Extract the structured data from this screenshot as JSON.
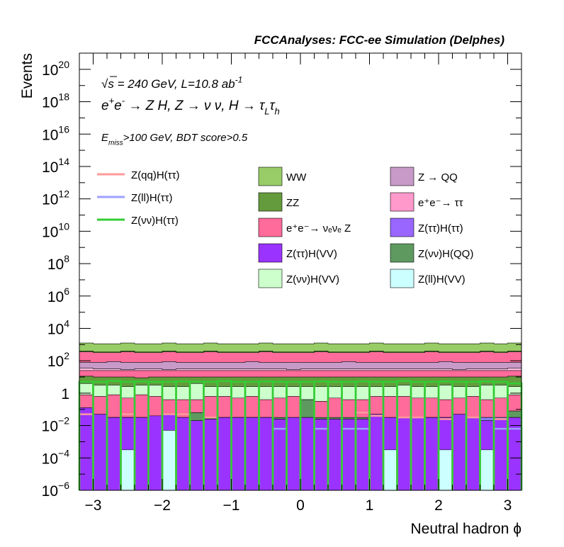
{
  "chart_data": {
    "type": "bar",
    "title": "FCCAnalyses: FCC-ee Simulation (Delphes)",
    "xlabel": "Neutral hadron ϕ",
    "ylabel": "Events",
    "xlim": [
      -3.2,
      3.2
    ],
    "ylim": [
      1e-06,
      1e+21
    ],
    "ylog": true,
    "x_ticks": [
      -3,
      -2,
      -1,
      0,
      1,
      2,
      3
    ],
    "x_tick_labels": [
      "−3",
      "−2",
      "−1",
      "0",
      "1",
      "2",
      "3"
    ],
    "y_ticks": [
      {
        "v": 1e-06,
        "base": "10",
        "exp": "−6"
      },
      {
        "v": 0.0001,
        "base": "10",
        "exp": "−4"
      },
      {
        "v": 0.01,
        "base": "10",
        "exp": "−2"
      },
      {
        "v": 1,
        "base": "1",
        "exp": ""
      },
      {
        "v": 100.0,
        "base": "10",
        "exp": "2"
      },
      {
        "v": 10000.0,
        "base": "10",
        "exp": "4"
      },
      {
        "v": 1000000.0,
        "base": "10",
        "exp": "6"
      },
      {
        "v": 100000000.0,
        "base": "10",
        "exp": "8"
      },
      {
        "v": 10000000000.0,
        "base": "10",
        "exp": "10"
      },
      {
        "v": 1000000000000.0,
        "base": "10",
        "exp": "12"
      },
      {
        "v": 100000000000000.0,
        "base": "10",
        "exp": "14"
      },
      {
        "v": 1e+16,
        "base": "10",
        "exp": "16"
      },
      {
        "v": 1e+18,
        "base": "10",
        "exp": "18"
      },
      {
        "v": 1e+20,
        "base": "10",
        "exp": "20"
      }
    ],
    "annotations": [
      {
        "id": "energy",
        "parts": [
          [
            "√",
            ""
          ],
          [
            "s = 240 GeV, L=10.8 ab",
            ""
          ],
          [
            "-1",
            "sup"
          ]
        ]
      },
      {
        "id": "process",
        "parts": [
          [
            "e",
            ""
          ],
          [
            "+",
            "sup"
          ],
          [
            "e",
            ""
          ],
          [
            "-",
            "sup"
          ],
          [
            " → Z H, Z  → ν ν, H  → τ",
            ""
          ],
          [
            "L",
            "sub"
          ],
          [
            "τ",
            ""
          ],
          [
            "h",
            "sub"
          ]
        ]
      },
      {
        "id": "cuts",
        "parts": [
          [
            "E",
            ""
          ],
          [
            "miss",
            "sub"
          ],
          [
            ">100 GeV, BDT score>0.5",
            ""
          ]
        ]
      }
    ],
    "bin_edges": [
      -3.2,
      -3.0,
      -2.8,
      -2.6,
      -2.4,
      -2.2,
      -2.0,
      -1.8,
      -1.6,
      -1.4,
      -1.2,
      -1.0,
      -0.8,
      -0.6,
      -0.4,
      -0.2,
      0.0,
      0.2,
      0.4,
      0.6,
      0.8,
      1.0,
      1.2,
      1.4,
      1.6,
      1.8,
      2.0,
      2.2,
      2.4,
      2.6,
      2.8,
      3.0,
      3.2
    ],
    "stack_totals_log10": [
      [
        -0.9,
        -1.3,
        -1.5,
        -1.5,
        -1.5,
        -1.4,
        -1.3,
        -1.5,
        -1.7,
        -1.6,
        -1.5,
        -1.5,
        -1.5,
        -1.5,
        -1.6,
        -1.5,
        -1.5,
        -1.6,
        -1.6,
        -1.6,
        -1.6,
        -1.3,
        -1.5,
        -1.5,
        -1.5,
        -1.5,
        -1.5,
        -1.3,
        -1.5,
        -1.7,
        -1.6,
        -1.5
      ],
      [
        -1.5,
        -1.5,
        -1.5,
        -1.5,
        -1.5,
        -1.5,
        -1.5,
        -1.8,
        -1.8,
        -1.6,
        -1.5,
        -1.5,
        -1.5,
        -1.5,
        -1.6,
        -1.6,
        -1.5,
        -1.6,
        -1.6,
        -1.8,
        -1.7,
        -1.6,
        -1.6,
        -1.7,
        -1.5,
        -1.5,
        -1.5,
        -1.5,
        -1.5,
        -1.5,
        -1.5,
        -1.5
      ],
      [
        -1.5,
        -1.5,
        -1.5,
        -1.5,
        -1.5,
        -1.5,
        -1.5,
        -1.5,
        -1.2,
        -1.5,
        -1.5,
        -1.5,
        -1.5,
        -1.5,
        -1.5,
        -1.5,
        -0.4,
        -1.5,
        -1.5,
        -1.5,
        -1.5,
        -1.5,
        -1.5,
        -1.5,
        -1.5,
        -1.5,
        -1.5,
        -1.5,
        -1.5,
        -1.5,
        -1.5,
        -1.1
      ],
      [
        -0.1,
        -0.2,
        -0.1,
        -0.3,
        -0.1,
        -0.2,
        -0.4,
        -0.4,
        -0.4,
        -0.2,
        -0.2,
        -0.3,
        -0.2,
        -0.4,
        -0.3,
        -0.2,
        -0.4,
        -0.5,
        -0.3,
        -0.4,
        -0.4,
        -0.2,
        -0.2,
        -0.2,
        -0.3,
        -0.3,
        -0.4,
        -0.3,
        -0.2,
        -0.4,
        -0.3,
        -0.1
      ],
      [
        0.6,
        0.5,
        0.5,
        0.4,
        0.5,
        0.5,
        0.4,
        0.4,
        0.6,
        0.4,
        0.4,
        0.4,
        0.4,
        0.4,
        0.4,
        0.4,
        0.4,
        0.4,
        0.4,
        0.4,
        0.4,
        0.4,
        0.4,
        0.5,
        0.4,
        0.4,
        0.5,
        0.4,
        0.4,
        0.5,
        0.5,
        0.4
      ],
      [
        1.05,
        1.0,
        1.0,
        1.0,
        0.95,
        1.0,
        1.0,
        1.0,
        1.0,
        1.0,
        1.0,
        1.0,
        1.0,
        1.0,
        1.0,
        1.0,
        1.0,
        1.0,
        1.0,
        1.0,
        1.0,
        1.0,
        1.0,
        1.0,
        1.0,
        1.0,
        1.0,
        1.0,
        1.0,
        1.0,
        1.0,
        1.05
      ],
      [
        1.4,
        1.4,
        1.4,
        1.4,
        1.4,
        1.4,
        1.4,
        1.4,
        1.4,
        1.4,
        1.4,
        1.4,
        1.4,
        1.4,
        1.4,
        1.4,
        1.4,
        1.4,
        1.4,
        1.4,
        1.4,
        1.4,
        1.4,
        1.4,
        1.4,
        1.4,
        1.4,
        1.4,
        1.4,
        1.4,
        1.4,
        1.4
      ],
      [
        1.55,
        1.5,
        1.5,
        1.45,
        1.5,
        1.5,
        1.45,
        1.5,
        1.5,
        1.5,
        1.5,
        1.5,
        1.5,
        1.5,
        1.5,
        1.45,
        1.5,
        1.5,
        1.5,
        1.5,
        1.5,
        1.5,
        1.5,
        1.5,
        1.5,
        1.5,
        1.5,
        1.45,
        1.5,
        1.5,
        1.5,
        1.55
      ],
      [
        1.9,
        1.9,
        1.95,
        1.9,
        1.9,
        1.9,
        1.95,
        1.9,
        1.9,
        1.9,
        1.9,
        1.9,
        1.95,
        1.9,
        1.9,
        1.9,
        1.9,
        1.9,
        1.9,
        1.95,
        1.9,
        1.9,
        1.9,
        1.9,
        1.9,
        1.9,
        1.95,
        1.9,
        1.9,
        1.9,
        1.9,
        1.9
      ],
      [
        2.55,
        2.5,
        2.5,
        2.55,
        2.5,
        2.5,
        2.55,
        2.5,
        2.5,
        2.55,
        2.5,
        2.5,
        2.5,
        2.55,
        2.5,
        2.5,
        2.5,
        2.55,
        2.5,
        2.5,
        2.5,
        2.55,
        2.5,
        2.5,
        2.5,
        2.55,
        2.5,
        2.5,
        2.5,
        2.55,
        2.5,
        2.55
      ],
      [
        2.6,
        2.55,
        2.55,
        2.6,
        2.55,
        2.55,
        2.6,
        2.55,
        2.55,
        2.6,
        2.55,
        2.55,
        2.55,
        2.6,
        2.55,
        2.55,
        2.55,
        2.6,
        2.55,
        2.55,
        2.55,
        2.6,
        2.55,
        2.55,
        2.55,
        2.6,
        2.55,
        2.55,
        2.55,
        2.6,
        2.55,
        2.6
      ],
      [
        3.1,
        3.05,
        3.05,
        3.1,
        3.05,
        3.05,
        3.1,
        3.05,
        3.05,
        3.1,
        3.05,
        3.05,
        3.05,
        3.1,
        3.05,
        3.05,
        3.05,
        3.1,
        3.05,
        3.05,
        3.05,
        3.1,
        3.05,
        3.05,
        3.05,
        3.1,
        3.05,
        3.05,
        3.05,
        3.1,
        3.05,
        3.1
      ]
    ],
    "stack_colors": [
      "#9a33ff",
      "#8e7df8",
      "#5e9a60",
      "#ff6b9a",
      "#ccffcc",
      "#649b3c",
      "#ff6b9a",
      "#ffc0e6",
      "#c89ac8",
      "#ff6b9a",
      "#649b3c",
      "#98cc66"
    ],
    "overlay_series": [
      {
        "name": "Z(ll)H(VV)",
        "type": "fill",
        "color": "#ccffff",
        "log10": [
          null,
          null,
          null,
          -3.5,
          null,
          null,
          -2.3,
          null,
          null,
          null,
          null,
          null,
          null,
          null,
          null,
          null,
          null,
          null,
          null,
          null,
          null,
          null,
          -3.5,
          null,
          null,
          null,
          -3.5,
          null,
          null,
          -3.5,
          null,
          null
        ]
      },
      {
        "name": "Z(ll)H(ττ)",
        "type": "line",
        "color": "#9ea0ff",
        "log10": [
          null,
          null,
          null,
          null,
          null,
          null,
          null,
          null,
          null,
          null,
          null,
          null,
          null,
          null,
          -2.2,
          null,
          null,
          -2.2,
          null,
          -2.2,
          -2.2,
          null,
          null,
          null,
          null,
          null,
          null,
          null,
          null,
          null,
          -2.2,
          -2.2
        ]
      },
      {
        "name": "Z(qq)H(ττ)",
        "type": "line",
        "color": "#ff9a9a",
        "log10": [
          -1.3,
          null,
          null,
          -1.3,
          null,
          null,
          -1.3,
          -1.3,
          null,
          -1.5,
          null,
          null,
          null,
          null,
          null,
          null,
          null,
          null,
          null,
          null,
          -1.2,
          -1.4,
          null,
          -1.5,
          -1.5,
          null,
          -1.6,
          null,
          -1.5,
          null,
          -1.6,
          null
        ]
      },
      {
        "name": "Z(νν)H(ττ)",
        "type": "line",
        "color": "#33cc33",
        "log10": [
          0.7,
          0.7,
          0.75,
          0.7,
          0.72,
          0.7,
          0.7,
          0.72,
          0.7,
          0.7,
          0.75,
          0.7,
          0.7,
          0.72,
          0.7,
          0.7,
          0.7,
          0.72,
          0.7,
          0.7,
          0.72,
          0.7,
          0.7,
          0.75,
          0.7,
          0.7,
          0.72,
          0.7,
          0.7,
          0.72,
          0.7,
          0.6
        ]
      }
    ],
    "legend_lines": [
      {
        "label": "Z(qq)H(ττ)",
        "color": "#ff9a9a"
      },
      {
        "label": "Z(ll)H(ττ)",
        "color": "#9ea0ff"
      },
      {
        "label": "Z(νν)H(ττ)",
        "color": "#33cc33"
      }
    ],
    "legend_boxes": [
      {
        "label": "WW",
        "color": "#98cc66",
        "col": 0,
        "row": 0
      },
      {
        "label": "Z → QQ",
        "color": "#c89ac8",
        "col": 1,
        "row": 0
      },
      {
        "label": "ZZ",
        "color": "#649b3c",
        "col": 0,
        "row": 1
      },
      {
        "label": "e⁺e⁻→ ττ",
        "color": "#ff99cc",
        "col": 1,
        "row": 1
      },
      {
        "label": "e⁺e⁻→ νₑνₑ Z",
        "color": "#ff6b9a",
        "col": 0,
        "row": 2
      },
      {
        "label": "Z(ττ)H(ττ)",
        "color": "#9966ff",
        "col": 1,
        "row": 2
      },
      {
        "label": "Z(ττ)H(VV)",
        "color": "#9a33ff",
        "col": 0,
        "row": 3
      },
      {
        "label": "Z(νν)H(QQ)",
        "color": "#5e9a60",
        "col": 1,
        "row": 3
      },
      {
        "label": "Z(νν)H(VV)",
        "color": "#ccffcc",
        "col": 0,
        "row": 4
      },
      {
        "label": "Z(ll)H(VV)",
        "color": "#ccffff",
        "col": 1,
        "row": 4
      }
    ]
  }
}
